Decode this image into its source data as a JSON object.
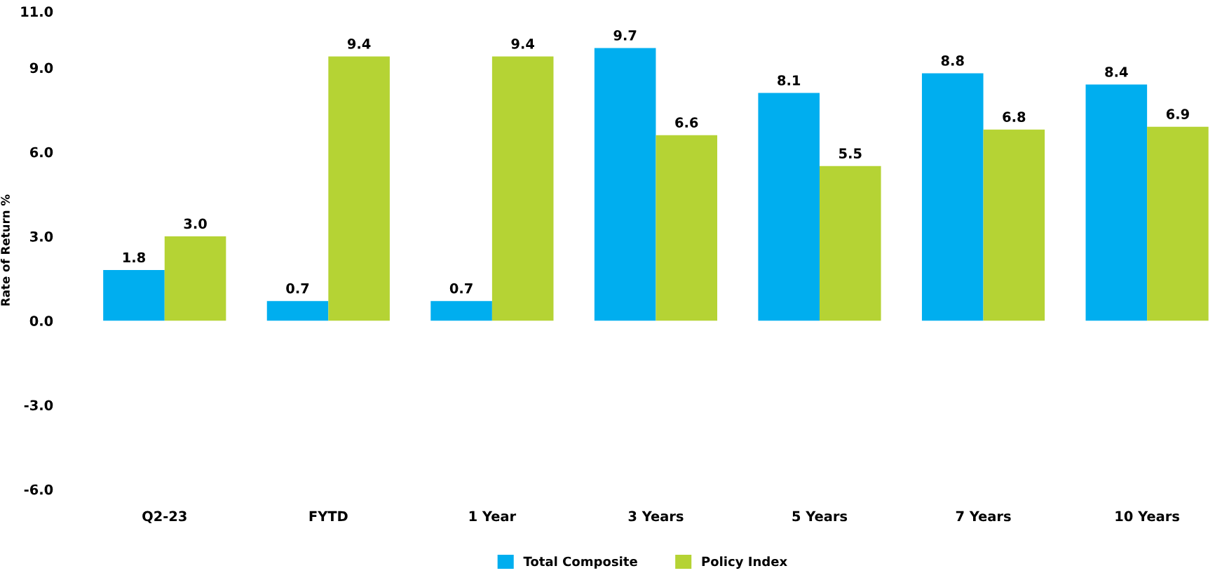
{
  "chart_data": {
    "type": "bar",
    "ylabel": "Rate of Return %",
    "categories": [
      "Q2-23",
      "FYTD",
      "1 Year",
      "3 Years",
      "5 Years",
      "7 Years",
      "10 Years"
    ],
    "series": [
      {
        "name": "Total Composite",
        "color": "#00aeef",
        "values": [
          1.8,
          0.7,
          0.7,
          9.7,
          8.1,
          8.8,
          8.4
        ],
        "value_labels": [
          "1.8",
          "0.7",
          "0.7",
          "9.7",
          "8.1",
          "8.8",
          "8.4"
        ]
      },
      {
        "name": "Policy Index",
        "color": "#b5d334",
        "values": [
          3.0,
          9.4,
          9.4,
          6.6,
          5.5,
          6.8,
          6.9
        ],
        "value_labels": [
          "3.0",
          "9.4",
          "9.4",
          "6.6",
          "5.5",
          "6.8",
          "6.9"
        ]
      }
    ],
    "ylim": [
      -6,
      11
    ],
    "yticks": [
      {
        "value": -6,
        "label": "-6.0"
      },
      {
        "value": -3,
        "label": "-3.0"
      },
      {
        "value": 0,
        "label": "0.0"
      },
      {
        "value": 3,
        "label": "3.0"
      },
      {
        "value": 6,
        "label": "6.0"
      },
      {
        "value": 9,
        "label": "9.0"
      },
      {
        "value": 11,
        "label": "11.0"
      }
    ],
    "grid": false,
    "legend": "bottom"
  }
}
